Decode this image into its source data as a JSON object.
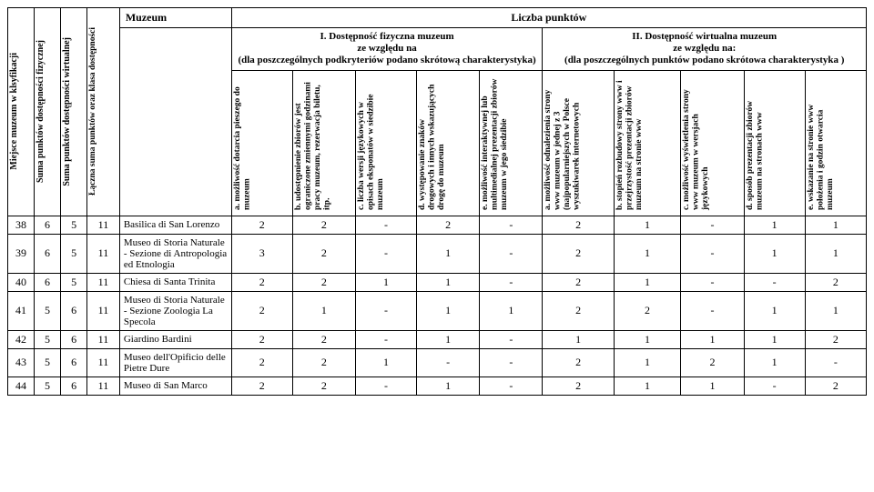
{
  "headers": {
    "col_place": "Miejsce muzeum w klsyfikacji",
    "col_sum_phys": "Suma punktów dostępności fizycznej",
    "col_sum_virt": "Suma punktów dostępności wirtualnej",
    "col_total": "Łączna suma punktów oraz klasa dostępności",
    "museum": "Muzeum",
    "points": "Liczba punktów",
    "section1_title": "I. Dostępność fizyczna muzeum",
    "section1_sub": "ze względu na",
    "section1_note": "(dla poszczególnych podkryteriów podano skrótową charakterystyka)",
    "section2_title": "II. Dostępność wirtualna muzeum",
    "section2_sub": "ze względu na:",
    "section2_note": "(dla poszczególnych punktów podano skrótowa charakterystyka )",
    "crit": {
      "a1": "a. możliwość dotarcia pieszego do muzeum",
      "b1": "b. udostępnienie zbiorów jest ograniczone zmiennymi godzinami pracy muzeum, rezerwacja biletu, itp.",
      "c1": "c. liczba wersji językowych w opisach eksponatów w siedzibie muzeum",
      "d1": "d. występowanie znaków drogowych i innych wskazujących drogę do muzeum",
      "e1": "e. możliwość interaktywnej lub multimedialnej prezentacji zbiorów muzeum w jego siedzibie",
      "a2": "a. możliwość odnalezienia strony www muzeum w jednej z 3 (najpopularniejszych w Polsce wyszukiwarek internetowych",
      "b2": "b. stopień rozbudowy strony www i przejrzystość prezentacji zbiorów muzeum na stronie www",
      "c2": "c. możliwość wyświetlenia strony www muzeum w wersjach językowych",
      "d2": "d. sposób prezentacji zbiorów muzeum na stronach www",
      "e2": "e. wskazanie na stronie www położenia i godzin otwarcia muzeum"
    }
  },
  "rows": [
    {
      "n": "38",
      "p": "6",
      "v": "5",
      "t": "11",
      "museum": "Basilica di San Lorenzo",
      "d": [
        "2",
        "2",
        "-",
        "2",
        "-",
        "2",
        "1",
        "-",
        "1",
        "1"
      ]
    },
    {
      "n": "39",
      "p": "6",
      "v": "5",
      "t": "11",
      "museum": "Museo di Storia Naturale - Sezione di Antropologia ed Etnologia",
      "d": [
        "3",
        "2",
        "-",
        "1",
        "-",
        "2",
        "1",
        "-",
        "1",
        "1"
      ]
    },
    {
      "n": "40",
      "p": "6",
      "v": "5",
      "t": "11",
      "museum": "Chiesa di Santa Trinita",
      "d": [
        "2",
        "2",
        "1",
        "1",
        "-",
        "2",
        "1",
        "-",
        "-",
        "2"
      ]
    },
    {
      "n": "41",
      "p": "5",
      "v": "6",
      "t": "11",
      "museum": "Museo di Storia Naturale - Sezione Zoologia La Specola",
      "d": [
        "2",
        "1",
        "-",
        "1",
        "1",
        "2",
        "2",
        "-",
        "1",
        "1"
      ]
    },
    {
      "n": "42",
      "p": "5",
      "v": "6",
      "t": "11",
      "museum": "Giardino Bardini",
      "d": [
        "2",
        "2",
        "-",
        "1",
        "-",
        "1",
        "1",
        "1",
        "1",
        "2"
      ]
    },
    {
      "n": "43",
      "p": "5",
      "v": "6",
      "t": "11",
      "museum": "Museo dell'Opificio delle Pietre Dure",
      "d": [
        "2",
        "2",
        "1",
        "-",
        "-",
        "2",
        "1",
        "2",
        "1",
        "-"
      ]
    },
    {
      "n": "44",
      "p": "5",
      "v": "6",
      "t": "11",
      "museum": "Museo di San Marco",
      "d": [
        "2",
        "2",
        "-",
        "1",
        "-",
        "2",
        "1",
        "1",
        "-",
        "2"
      ]
    }
  ],
  "style": {
    "font_family": "Times New Roman",
    "border_color": "#000000",
    "background": "#ffffff",
    "text_color": "#000000"
  }
}
